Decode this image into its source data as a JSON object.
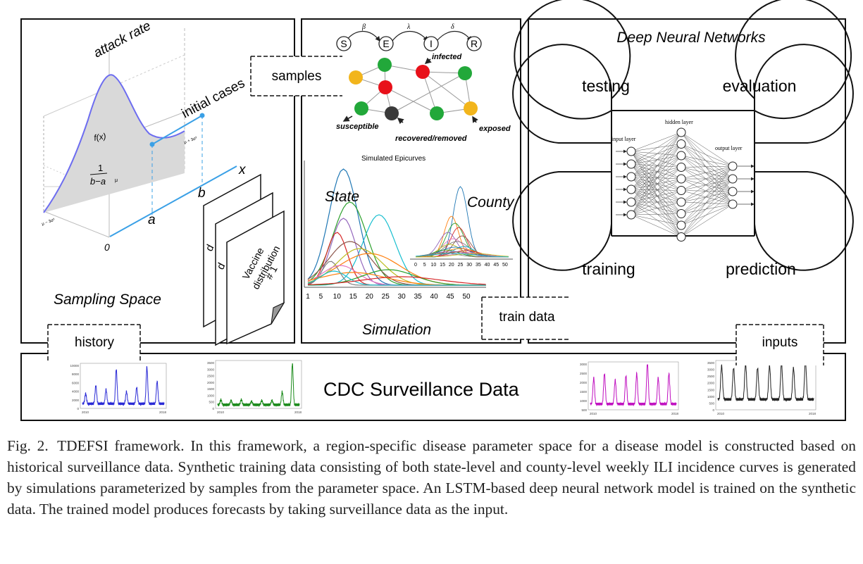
{
  "sampling": {
    "attack_rate_label": "attack rate",
    "initial_cases_label": "initial cases",
    "fx_label": "f(x)",
    "frac_num": "1",
    "frac_den": "b−a",
    "mu_label": "μ",
    "mu_minus_label": "μ − 3σ²",
    "mu_plus_label": "μ + 3σ²",
    "x_label": "x",
    "a_label": "a",
    "b_label": "b",
    "zero_label": "0",
    "vaccine_line1": "Vaccine",
    "vaccine_line2": "distribution",
    "vaccine_line3": "# 1",
    "title": "Sampling Space"
  },
  "connectors": {
    "samples": "samples",
    "train_data": "train data",
    "history": "history",
    "inputs": "inputs"
  },
  "seir": {
    "S": "S",
    "E": "E",
    "I": "I",
    "R": "R",
    "beta": "β",
    "lambda": "λ",
    "delta": "δ",
    "infected": "infected",
    "susceptible": "susceptible",
    "recovered": "recovered/removed",
    "exposed": "exposed"
  },
  "simulation": {
    "plot_title": "Simulated Epicurves",
    "state_label": "State",
    "county_label": "County",
    "title": "Simulation",
    "x_ticks": [
      "1",
      "5",
      "10",
      "15",
      "20",
      "25",
      "30",
      "35",
      "40",
      "45",
      "50"
    ],
    "county_ticks": [
      "0",
      "5",
      "10",
      "15",
      "20",
      "25",
      "30",
      "35",
      "40",
      "45",
      "50"
    ]
  },
  "dnn": {
    "title": "Deep Neural Networks",
    "testing": "testing",
    "evaluation": "evaluation",
    "training": "training",
    "prediction": "prediction",
    "input_layer": "input layer",
    "hidden_layer": "hidden layer",
    "output_layer": "output layer"
  },
  "cdc": {
    "title": "CDC Surveillance Data",
    "minis": [
      {
        "color": "#2a2ad6",
        "y_ticks": [
          "10000",
          "8000",
          "6000",
          "4000",
          "2000",
          "0"
        ],
        "x_start": "2010",
        "x_end": "2018"
      },
      {
        "color": "#1a8a1a",
        "y_ticks": [
          "3500",
          "3000",
          "2500",
          "2000",
          "1500",
          "1000",
          "500",
          "0"
        ],
        "x_start": "2010",
        "x_end": "2018"
      },
      {
        "color": "#c010c0",
        "y_ticks": [
          "3000",
          "2500",
          "2000",
          "1500",
          "1000",
          "500"
        ],
        "x_start": "2010",
        "x_end": "2018"
      },
      {
        "color": "#222222",
        "y_ticks": [
          "3500",
          "3000",
          "2500",
          "2000",
          "1500",
          "1000",
          "500",
          "0"
        ],
        "x_start": "2010",
        "x_end": "2018"
      }
    ]
  },
  "caption": {
    "fig_label": "Fig. 2.",
    "text": "TDEFSI framework. In this framework, a region-specific disease parameter space for a disease model is constructed based on historical surveillance data. Synthetic training data consisting of both state-level and county-level weekly ILI incidence curves is generated by simulations parameterized by samples from the parameter space. An LSTM-based deep neural network model is trained on the synthetic data. The trained model produces forecasts by taking surveillance data as the input."
  }
}
